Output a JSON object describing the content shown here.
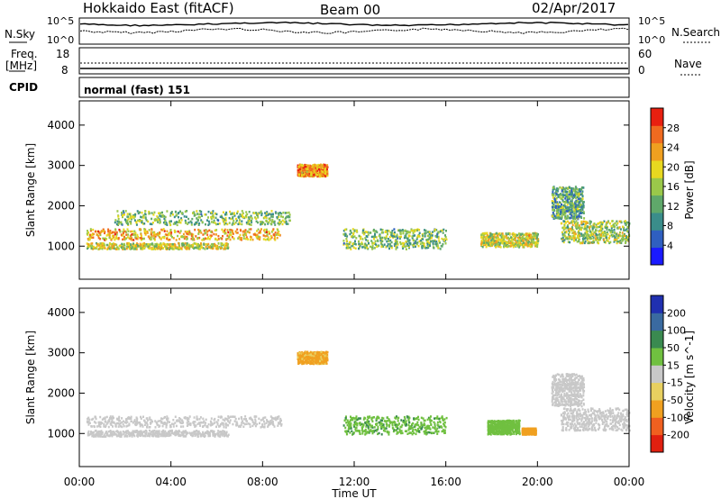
{
  "header": {
    "station": "Hokkaido East (fitACF)",
    "beam": "Beam 00",
    "date": "02/Apr/2017"
  },
  "top_panels": {
    "left_label_1": "N.Sky",
    "left_label_2a": "Freq.",
    "left_label_2b": "[MHz]",
    "left_label_3": "CPID",
    "right_label_1": "N.Search",
    "right_label_2": "Nave",
    "nsky_ticks": [
      "10^5",
      "10^0"
    ],
    "nsearch_ticks": [
      "10^5",
      "10^0"
    ],
    "freq_ticks": [
      "18",
      "8"
    ],
    "nave_ticks": [
      "60",
      "0"
    ],
    "cpid_text": "normal (fast) 151"
  },
  "chart_data": [
    {
      "type": "heatmap",
      "name": "power",
      "ylabel": "Slant Range [km]",
      "xlabel": "Time UT",
      "x_ticks": [
        "00:00",
        "04:00",
        "08:00",
        "12:00",
        "16:00",
        "20:00",
        "00:00"
      ],
      "x_range_hours": [
        0,
        24
      ],
      "y_ticks": [
        1000,
        2000,
        3000,
        4000
      ],
      "y_range_km": [
        180,
        4600
      ],
      "colorbar": {
        "label": "Power [dB]",
        "ticks": [
          4,
          8,
          12,
          16,
          20,
          24,
          28
        ],
        "range": [
          0,
          32
        ],
        "colors": [
          "#1a1aff",
          "#2f5fc0",
          "#3a8d8a",
          "#5fa86a",
          "#9ac84a",
          "#e8d820",
          "#f0a020",
          "#f06a20",
          "#e82010"
        ]
      },
      "regions": [
        {
          "t0": 0.3,
          "t1": 8.8,
          "r0": 1180,
          "r1": 1450,
          "level": 22
        },
        {
          "t0": 0.3,
          "t1": 6.5,
          "r0": 950,
          "r1": 1100,
          "level": 18
        },
        {
          "t0": 1.5,
          "t1": 9.2,
          "r0": 1550,
          "r1": 1900,
          "level": 14
        },
        {
          "t0": 9.5,
          "t1": 10.8,
          "r0": 2750,
          "r1": 3050,
          "level": 24
        },
        {
          "t0": 11.5,
          "t1": 16.0,
          "r0": 950,
          "r1": 1450,
          "level": 14
        },
        {
          "t0": 17.5,
          "t1": 20.0,
          "r0": 1000,
          "r1": 1350,
          "level": 18
        },
        {
          "t0": 21.0,
          "t1": 24.0,
          "r0": 1100,
          "r1": 1650,
          "level": 16
        },
        {
          "t0": 20.6,
          "t1": 22.0,
          "r0": 1700,
          "r1": 2500,
          "level": 12
        }
      ]
    },
    {
      "type": "heatmap",
      "name": "velocity",
      "ylabel": "Slant Range [km]",
      "xlabel": "Time UT",
      "x_ticks": [
        "00:00",
        "04:00",
        "08:00",
        "12:00",
        "16:00",
        "20:00",
        "00:00"
      ],
      "x_range_hours": [
        0,
        24
      ],
      "y_ticks": [
        1000,
        2000,
        3000,
        4000
      ],
      "y_range_km": [
        180,
        4600
      ],
      "colorbar": {
        "label": "Velocity [m s^-1]",
        "ticks": [
          200,
          100,
          50,
          15,
          -15,
          -50,
          -100,
          -200
        ],
        "colors": [
          "#2030b0",
          "#3a6aa0",
          "#3a8a50",
          "#70c040",
          "#c8c8c8",
          "#e8d060",
          "#f0a020",
          "#f06020",
          "#e02010"
        ]
      },
      "regions": [
        {
          "t0": 0.3,
          "t1": 8.8,
          "r0": 1180,
          "r1": 1450,
          "level": 0
        },
        {
          "t0": 0.3,
          "t1": 6.5,
          "r0": 950,
          "r1": 1100,
          "level": 0
        },
        {
          "t0": 9.5,
          "t1": 10.8,
          "r0": 2750,
          "r1": 3050,
          "level": -60
        },
        {
          "t0": 11.5,
          "t1": 16.0,
          "r0": 1000,
          "r1": 1450,
          "level": 40
        },
        {
          "t0": 17.8,
          "t1": 19.2,
          "r0": 1000,
          "r1": 1350,
          "level": 30
        },
        {
          "t0": 19.3,
          "t1": 19.9,
          "r0": 1000,
          "r1": 1150,
          "level": -70
        },
        {
          "t0": 21.0,
          "t1": 24.0,
          "r0": 1100,
          "r1": 1650,
          "level": 0
        },
        {
          "t0": 20.6,
          "t1": 22.0,
          "r0": 1700,
          "r1": 2500,
          "level": 0
        }
      ]
    }
  ]
}
